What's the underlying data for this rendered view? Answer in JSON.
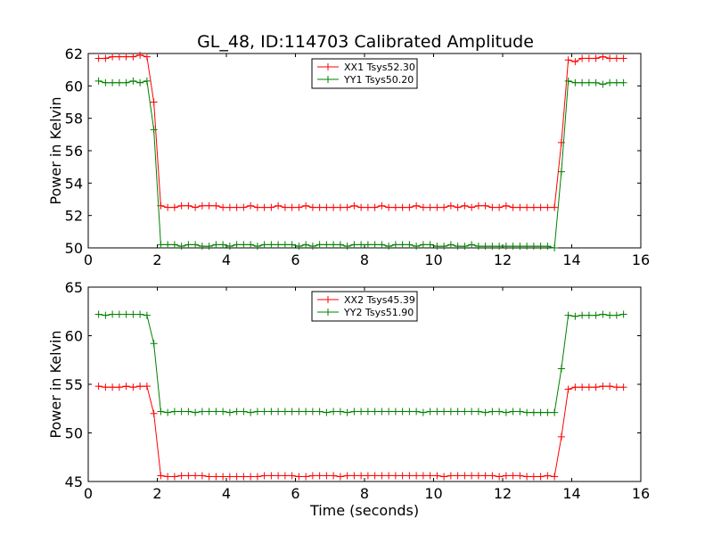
{
  "title": "GL_48, ID:114703 Calibrated Amplitude",
  "chart_data": [
    {
      "type": "line",
      "xlabel": "",
      "ylabel": "Power in Kelvin",
      "xlim": [
        0,
        16
      ],
      "ylim": [
        50,
        62
      ],
      "xticks": [
        0,
        2,
        4,
        6,
        8,
        10,
        12,
        14,
        16
      ],
      "yticks": [
        50,
        52,
        54,
        56,
        58,
        60,
        62
      ],
      "xtick_labels": [
        "0",
        "2",
        "4",
        "6",
        "8",
        "10",
        "12",
        "14",
        "16"
      ],
      "ytick_labels": [
        "50",
        "52",
        "54",
        "56",
        "58",
        "60",
        "62"
      ],
      "legend_position": "top-center",
      "grid": false,
      "x": [
        0.3,
        0.5,
        0.7,
        0.9,
        1.1,
        1.3,
        1.5,
        1.7,
        1.9,
        2.1,
        2.3,
        2.5,
        2.7,
        2.9,
        3.1,
        3.3,
        3.5,
        3.7,
        3.9,
        4.1,
        4.3,
        4.5,
        4.7,
        4.9,
        5.1,
        5.3,
        5.5,
        5.7,
        5.9,
        6.1,
        6.3,
        6.5,
        6.7,
        6.9,
        7.1,
        7.3,
        7.5,
        7.7,
        7.9,
        8.1,
        8.3,
        8.5,
        8.7,
        8.9,
        9.1,
        9.3,
        9.5,
        9.7,
        9.9,
        10.1,
        10.3,
        10.5,
        10.7,
        10.9,
        11.1,
        11.3,
        11.5,
        11.7,
        11.9,
        12.1,
        12.3,
        12.5,
        12.7,
        12.9,
        13.1,
        13.3,
        13.5,
        13.7,
        13.9,
        14.1,
        14.3,
        14.5,
        14.7,
        14.9,
        15.1,
        15.3,
        15.5
      ],
      "series": [
        {
          "name": "XX1 Tsys52.30",
          "color": "#ff0000",
          "values": [
            61.7,
            61.7,
            61.8,
            61.8,
            61.8,
            61.8,
            61.9,
            61.8,
            59.0,
            52.6,
            52.5,
            52.5,
            52.6,
            52.6,
            52.5,
            52.6,
            52.6,
            52.6,
            52.5,
            52.5,
            52.5,
            52.5,
            52.6,
            52.5,
            52.5,
            52.5,
            52.6,
            52.5,
            52.5,
            52.5,
            52.6,
            52.5,
            52.5,
            52.5,
            52.5,
            52.5,
            52.5,
            52.6,
            52.5,
            52.5,
            52.5,
            52.6,
            52.5,
            52.5,
            52.5,
            52.5,
            52.6,
            52.5,
            52.5,
            52.5,
            52.5,
            52.6,
            52.5,
            52.6,
            52.5,
            52.6,
            52.6,
            52.5,
            52.5,
            52.6,
            52.5,
            52.5,
            52.5,
            52.5,
            52.5,
            52.5,
            52.5,
            56.5,
            61.6,
            61.5,
            61.7,
            61.7,
            61.7,
            61.8,
            61.7,
            61.7,
            61.7
          ]
        },
        {
          "name": "YY1 Tsys50.20",
          "color": "#008000",
          "values": [
            60.3,
            60.2,
            60.2,
            60.2,
            60.2,
            60.3,
            60.2,
            60.3,
            57.3,
            50.2,
            50.2,
            50.2,
            50.1,
            50.2,
            50.2,
            50.1,
            50.1,
            50.2,
            50.2,
            50.1,
            50.2,
            50.2,
            50.2,
            50.1,
            50.2,
            50.2,
            50.2,
            50.2,
            50.2,
            50.1,
            50.2,
            50.1,
            50.2,
            50.2,
            50.2,
            50.2,
            50.1,
            50.2,
            50.2,
            50.2,
            50.2,
            50.2,
            50.1,
            50.2,
            50.2,
            50.2,
            50.1,
            50.2,
            50.2,
            50.1,
            50.1,
            50.2,
            50.1,
            50.1,
            50.2,
            50.1,
            50.1,
            50.1,
            50.1,
            50.1,
            50.1,
            50.1,
            50.1,
            50.1,
            50.1,
            50.1,
            50.0,
            54.7,
            60.3,
            60.2,
            60.2,
            60.2,
            60.2,
            60.1,
            60.2,
            60.2,
            60.2
          ]
        }
      ]
    },
    {
      "type": "line",
      "xlabel": "Time (seconds)",
      "ylabel": "Power in Kelvin",
      "xlim": [
        0,
        16
      ],
      "ylim": [
        45,
        65
      ],
      "xticks": [
        0,
        2,
        4,
        6,
        8,
        10,
        12,
        14,
        16
      ],
      "yticks": [
        45,
        50,
        55,
        60,
        65
      ],
      "xtick_labels": [
        "0",
        "2",
        "4",
        "6",
        "8",
        "10",
        "12",
        "14",
        "16"
      ],
      "ytick_labels": [
        "45",
        "50",
        "55",
        "60",
        "65"
      ],
      "legend_position": "top-center",
      "grid": false,
      "x": [
        0.3,
        0.5,
        0.7,
        0.9,
        1.1,
        1.3,
        1.5,
        1.7,
        1.9,
        2.1,
        2.3,
        2.5,
        2.7,
        2.9,
        3.1,
        3.3,
        3.5,
        3.7,
        3.9,
        4.1,
        4.3,
        4.5,
        4.7,
        4.9,
        5.1,
        5.3,
        5.5,
        5.7,
        5.9,
        6.1,
        6.3,
        6.5,
        6.7,
        6.9,
        7.1,
        7.3,
        7.5,
        7.7,
        7.9,
        8.1,
        8.3,
        8.5,
        8.7,
        8.9,
        9.1,
        9.3,
        9.5,
        9.7,
        9.9,
        10.1,
        10.3,
        10.5,
        10.7,
        10.9,
        11.1,
        11.3,
        11.5,
        11.7,
        11.9,
        12.1,
        12.3,
        12.5,
        12.7,
        12.9,
        13.1,
        13.3,
        13.5,
        13.7,
        13.9,
        14.1,
        14.3,
        14.5,
        14.7,
        14.9,
        15.1,
        15.3,
        15.5
      ],
      "series": [
        {
          "name": "XX2 Tsys45.39",
          "color": "#ff0000",
          "values": [
            54.8,
            54.7,
            54.7,
            54.7,
            54.8,
            54.7,
            54.8,
            54.8,
            52.0,
            45.6,
            45.5,
            45.5,
            45.6,
            45.6,
            45.6,
            45.6,
            45.5,
            45.5,
            45.5,
            45.5,
            45.5,
            45.5,
            45.5,
            45.5,
            45.6,
            45.6,
            45.6,
            45.6,
            45.6,
            45.5,
            45.5,
            45.6,
            45.6,
            45.6,
            45.6,
            45.5,
            45.6,
            45.6,
            45.6,
            45.6,
            45.6,
            45.6,
            45.6,
            45.6,
            45.6,
            45.6,
            45.6,
            45.6,
            45.6,
            45.6,
            45.5,
            45.6,
            45.6,
            45.6,
            45.6,
            45.6,
            45.6,
            45.6,
            45.5,
            45.6,
            45.6,
            45.6,
            45.5,
            45.5,
            45.5,
            45.6,
            45.5,
            49.6,
            54.5,
            54.7,
            54.7,
            54.7,
            54.7,
            54.8,
            54.8,
            54.7,
            54.7
          ]
        },
        {
          "name": "YY2 Tsys51.90",
          "color": "#008000",
          "values": [
            62.2,
            62.1,
            62.2,
            62.2,
            62.2,
            62.2,
            62.2,
            62.1,
            59.2,
            52.2,
            52.1,
            52.2,
            52.2,
            52.2,
            52.1,
            52.2,
            52.2,
            52.2,
            52.2,
            52.1,
            52.2,
            52.2,
            52.1,
            52.2,
            52.2,
            52.2,
            52.2,
            52.2,
            52.2,
            52.2,
            52.2,
            52.2,
            52.2,
            52.1,
            52.2,
            52.2,
            52.1,
            52.2,
            52.2,
            52.2,
            52.2,
            52.2,
            52.2,
            52.2,
            52.2,
            52.2,
            52.2,
            52.1,
            52.2,
            52.2,
            52.2,
            52.2,
            52.2,
            52.2,
            52.2,
            52.2,
            52.1,
            52.2,
            52.2,
            52.1,
            52.2,
            52.2,
            52.1,
            52.1,
            52.1,
            52.1,
            52.1,
            56.6,
            62.1,
            62.0,
            62.1,
            62.1,
            62.1,
            62.2,
            62.1,
            62.1,
            62.2
          ]
        }
      ]
    }
  ]
}
